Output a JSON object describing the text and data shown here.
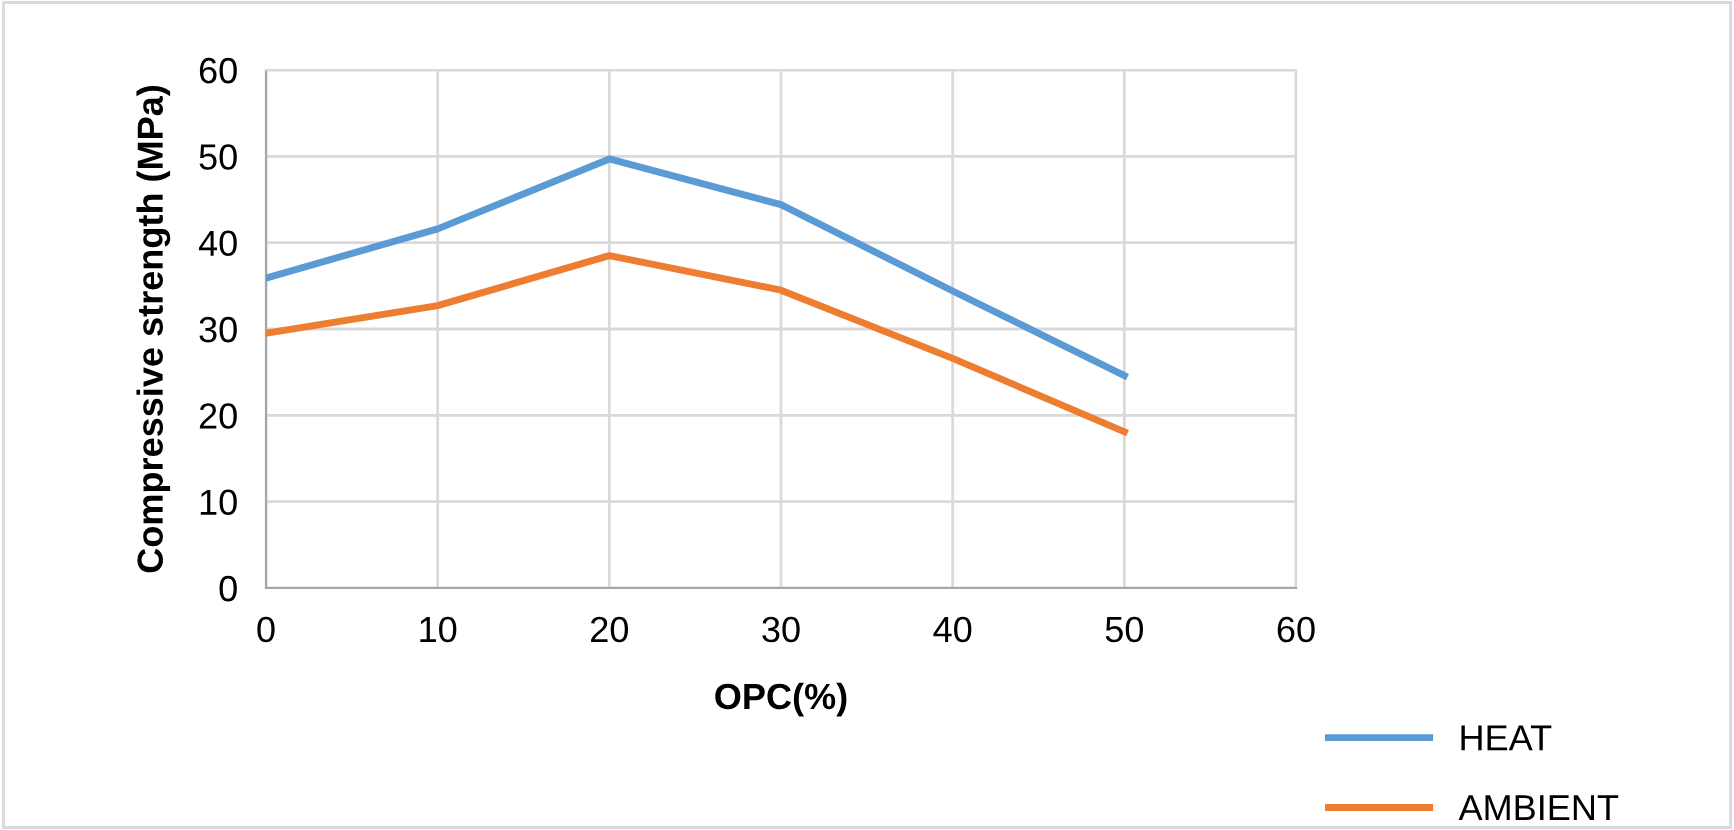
{
  "chart_data": {
    "type": "line",
    "xlabel": "OPC(%)",
    "ylabel": "Compressive strength (MPa)",
    "x": [
      0,
      10,
      20,
      30,
      40,
      50
    ],
    "series": [
      {
        "name": "HEAT",
        "color": "#5b9bd5",
        "values": [
          35.9,
          41.6,
          49.7,
          44.4,
          34.4,
          24.6
        ]
      },
      {
        "name": "AMBIENT",
        "color": "#ed7d31",
        "values": [
          29.5,
          32.7,
          38.5,
          34.5,
          26.6,
          18.1
        ]
      }
    ],
    "xlim": [
      0,
      60
    ],
    "xticks": [
      0,
      10,
      20,
      30,
      40,
      50,
      60
    ],
    "ylim": [
      0,
      60
    ],
    "yticks": [
      0,
      10,
      20,
      30,
      40,
      50,
      60
    ],
    "grid": true,
    "legend": "bottom right",
    "marker": "none",
    "line_style": "solid"
  }
}
